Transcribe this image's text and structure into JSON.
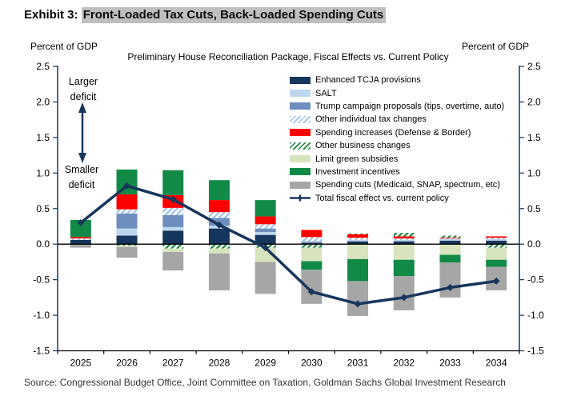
{
  "header": {
    "exhibit_label": "Exhibit 3:",
    "title_highlight": "Front-Loaded Tax Cuts, Back-Loaded Spending Cuts"
  },
  "axis_left_label": "Percent of GDP",
  "axis_right_label": "Percent of GDP",
  "subtitle": "Preliminary House Reconciliation Package, Fiscal Effects vs. Current Policy",
  "annotations": {
    "larger_deficit": "Larger deficit",
    "smaller_deficit": "Smaller deficit"
  },
  "source": "Source: Congressional Budget Office, Joint Committee on Taxation, Goldman Sachs Global Investment Research",
  "colors": {
    "navy": "#17365D",
    "salt_blue": "#BDD7EE",
    "steel_blue": "#6D8EBF",
    "red": "#FF0000",
    "light_green": "#D7E4BD",
    "green": "#128A47",
    "gray": "#A6A6A6",
    "hatch_blue_stripe": "#9DC3E6",
    "hatch_green_stripe": "#17823B",
    "line": "#17365D",
    "axis": "#17365D",
    "zero_line": "#000000",
    "highlight_bg": "#BFBFBF"
  },
  "chart_data": {
    "type": "bar",
    "subtype": "stacked-bar-with-line",
    "title": "Preliminary House Reconciliation Package, Fiscal Effects vs. Current Policy",
    "ylabel": "Percent of GDP",
    "ylim": [
      -1.5,
      2.5
    ],
    "ytick_step": 0.5,
    "grid": false,
    "legend_position": "top-right",
    "categories": [
      "2025",
      "2026",
      "2027",
      "2028",
      "2029",
      "2030",
      "2031",
      "2032",
      "2033",
      "2034"
    ],
    "series": [
      {
        "name": "enhanced-tcja",
        "label": "Enhanced TCJA provisions",
        "pattern": "solid",
        "color": "#17365D",
        "values": [
          0.06,
          0.12,
          0.19,
          0.22,
          0.13,
          0.02,
          0.04,
          0.04,
          0.05,
          0.05
        ]
      },
      {
        "name": "salt",
        "label": "SALT",
        "pattern": "solid",
        "color": "#BDD7EE",
        "values": [
          0.0,
          0.1,
          0.05,
          0.04,
          0.04,
          0.01,
          0.02,
          0.02,
          0.02,
          0.02
        ]
      },
      {
        "name": "trump-campaign-proposals",
        "label": "Trump campaign proposals (tips, overtime, auto)",
        "pattern": "solid",
        "color": "#6D8EBF",
        "values": [
          0.0,
          0.21,
          0.17,
          0.11,
          0.05,
          0.01,
          0.0,
          0.0,
          0.0,
          0.0
        ]
      },
      {
        "name": "other-individual-tax-changes",
        "label": "Other individual tax changes",
        "pattern": "hatch-blue",
        "color": "#9DC3E6",
        "values": [
          0.02,
          0.06,
          0.1,
          0.08,
          0.06,
          0.06,
          0.03,
          0.02,
          0.01,
          0.02
        ]
      },
      {
        "name": "spending-increases",
        "label": "Spending increases (Defense & Border)",
        "pattern": "solid",
        "color": "#FF0000",
        "values": [
          0.02,
          0.21,
          0.18,
          0.17,
          0.11,
          0.1,
          0.05,
          0.03,
          0.01,
          0.02
        ]
      },
      {
        "name": "other-business-changes",
        "label": "Other business changes",
        "pattern": "hatch-green",
        "color": "#17823B",
        "values": [
          0.0,
          -0.02,
          -0.06,
          -0.06,
          -0.05,
          -0.05,
          0.01,
          0.05,
          0.03,
          -0.05
        ]
      },
      {
        "name": "limit-green-subsidies",
        "label": "Limit green subsidies",
        "pattern": "solid",
        "color": "#D7E4BD",
        "values": [
          0.0,
          -0.02,
          -0.05,
          -0.07,
          -0.2,
          -0.19,
          -0.21,
          -0.22,
          -0.15,
          -0.17
        ]
      },
      {
        "name": "investment-incentives",
        "label": "Investment incentives",
        "pattern": "solid",
        "color": "#128A47",
        "values": [
          0.24,
          0.35,
          0.35,
          0.28,
          0.23,
          -0.12,
          -0.31,
          -0.23,
          -0.11,
          -0.1
        ]
      },
      {
        "name": "spending-cuts",
        "label": "Spending cuts (Medicaid, SNAP, spectrum, etc)",
        "pattern": "solid",
        "color": "#A6A6A6",
        "values": [
          -0.05,
          -0.15,
          -0.26,
          -0.52,
          -0.45,
          -0.48,
          -0.49,
          -0.48,
          -0.49,
          -0.33
        ]
      }
    ],
    "line_series": {
      "name": "total-fiscal-effect",
      "label": "Total fiscal effect vs. current policy",
      "color": "#17365D",
      "values": [
        0.3,
        0.82,
        0.63,
        0.27,
        -0.05,
        -0.67,
        -0.84,
        -0.75,
        -0.61,
        -0.52
      ]
    }
  }
}
